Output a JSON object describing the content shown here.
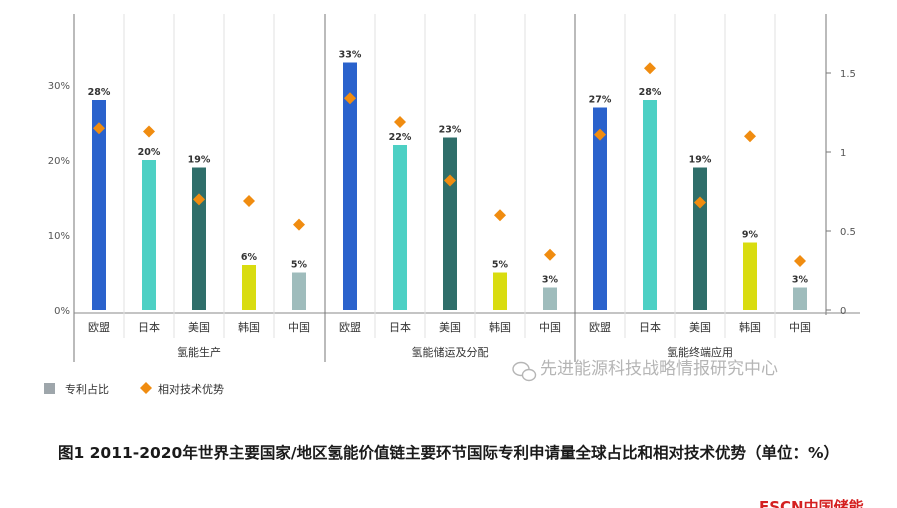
{
  "chart_data": {
    "type": "bar",
    "groups": [
      {
        "name": "氢能生产",
        "categories": [
          "欧盟",
          "日本",
          "美国",
          "韩国",
          "中国"
        ],
        "share_values": [
          28,
          20,
          19,
          6,
          5
        ],
        "share_labels": [
          "28%",
          "20%",
          "19%",
          "6%",
          "5%"
        ],
        "advantage_values": [
          1.15,
          1.13,
          0.7,
          0.69,
          0.54
        ]
      },
      {
        "name": "氢能储运及分配",
        "categories": [
          "欧盟",
          "日本",
          "美国",
          "韩国",
          "中国"
        ],
        "share_values": [
          33,
          22,
          23,
          5,
          3
        ],
        "share_labels": [
          "33%",
          "22%",
          "23%",
          "5%",
          "3%"
        ],
        "advantage_values": [
          1.34,
          1.19,
          0.82,
          0.6,
          0.35
        ]
      },
      {
        "name": "氢能终端应用",
        "categories": [
          "欧盟",
          "日本",
          "美国",
          "韩国",
          "中国"
        ],
        "share_values": [
          27,
          28,
          19,
          9,
          3
        ],
        "share_labels": [
          "27%",
          "28%",
          "19%",
          "9%",
          "3%"
        ],
        "advantage_values": [
          1.11,
          1.53,
          0.68,
          1.1,
          0.31
        ]
      }
    ],
    "left_axis": {
      "ylim": [
        0,
        40
      ],
      "ticks": [
        0,
        10,
        20,
        30
      ],
      "tick_labels": [
        "0%",
        "10%",
        "20%",
        "30%"
      ]
    },
    "right_axis": {
      "ylim": [
        0,
        2
      ],
      "ticks": [
        0,
        0.5,
        1,
        1.5
      ],
      "tick_labels": [
        "0",
        "0.5",
        "1",
        "1.5"
      ]
    },
    "colors": {
      "欧盟": "#2a62cc",
      "日本": "#4dd0c4",
      "美国": "#2f6e6a",
      "韩国": "#d9dc10",
      "中国": "#9fbcbc",
      "marker": "#f08c10"
    },
    "legend": {
      "position": "bottom-left",
      "items": [
        {
          "label": "专利占比",
          "color": "#9ea6ab",
          "shape": "square"
        },
        {
          "label": "相对技术优势",
          "color": "#f08c10",
          "shape": "diamond"
        }
      ]
    },
    "grid": false
  },
  "watermark": "先进能源科技战略情报研究中心",
  "caption": "图1 2011-2020年世界主要国家/地区氢能价值链主要环节国际专利申请量全球占比和相对技术优势（单位：%）",
  "logo_text": "ESCN中国储能"
}
